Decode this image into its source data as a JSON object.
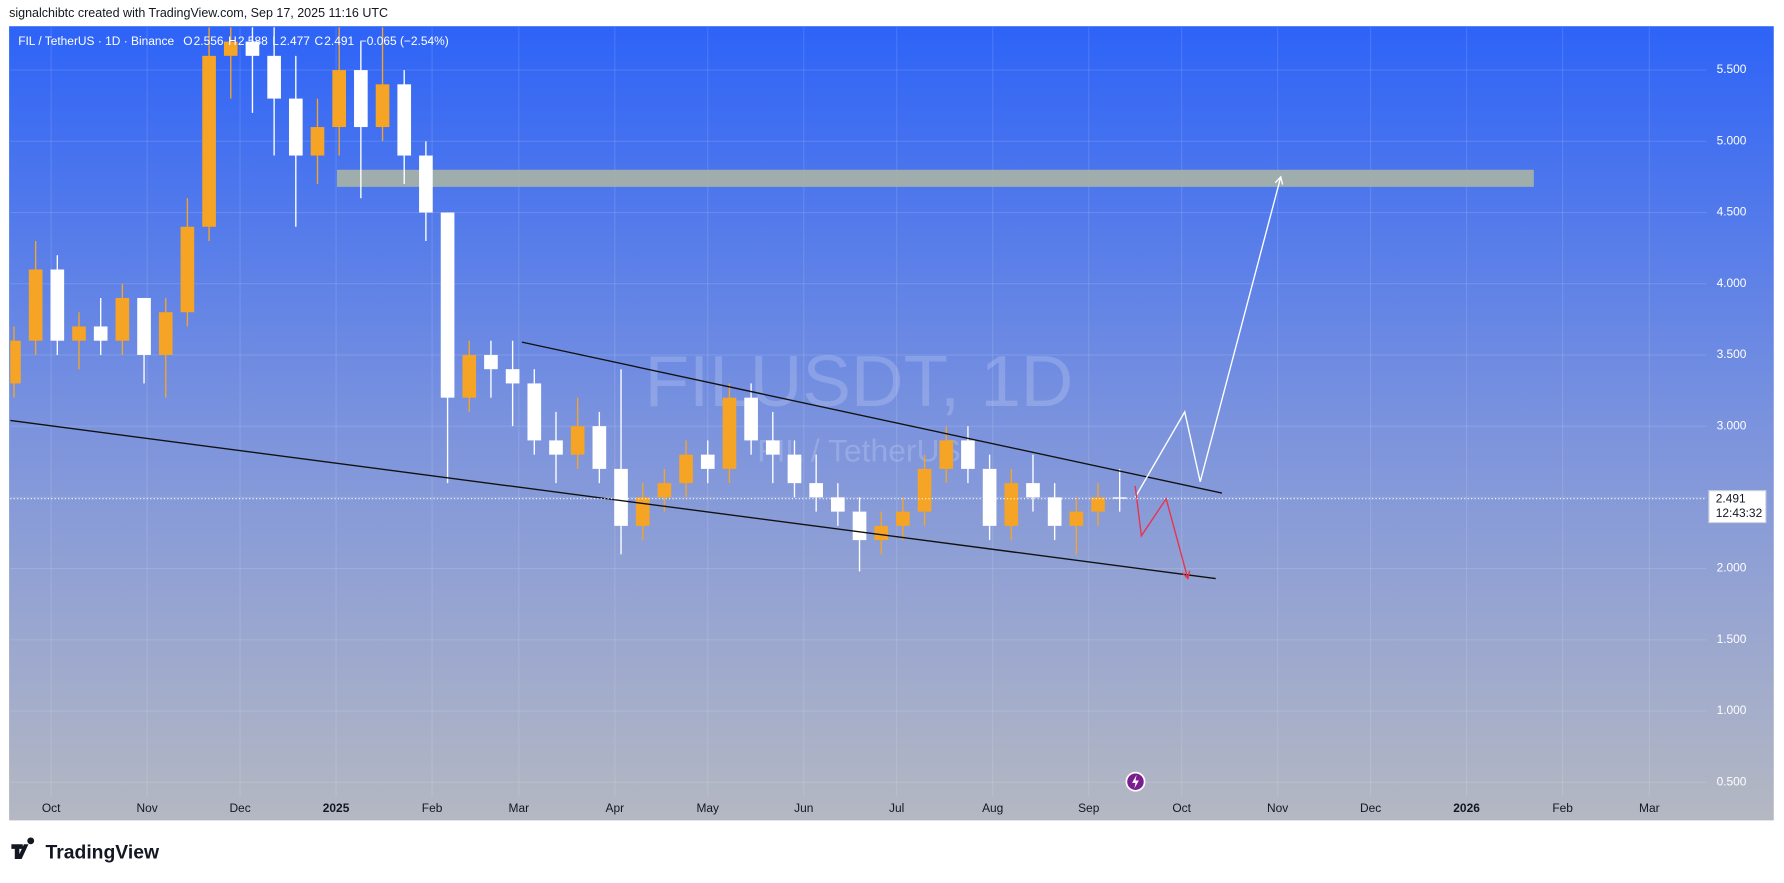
{
  "header": {
    "attribution": "signalchibtc created with TradingView.com, Sep 17, 2025 11:16 UTC"
  },
  "footer": {
    "logo": "TradingView"
  },
  "chart_data": {
    "type": "candlestick",
    "symbol_legend": "FIL / TetherUS · 1D · Binance",
    "ohlc_legend": [
      {
        "label": "O",
        "value": "2.556"
      },
      {
        "label": "H",
        "value": "2.588"
      },
      {
        "label": "L",
        "value": "2.477"
      },
      {
        "label": "C",
        "value": "2.491"
      }
    ],
    "change": "−0.065 (−2.54%)",
    "watermark": "FILUSDT, 1D",
    "watermark_sub": "FIL / TetherUS",
    "up_color": "#f5a425",
    "down_color": "#ffffff",
    "grid": true,
    "x": [
      -12,
      -5,
      2,
      9,
      16,
      23,
      30,
      37,
      44,
      51,
      58,
      65,
      72,
      79,
      86,
      93,
      100,
      107,
      114,
      121,
      128,
      135,
      142,
      149,
      156,
      163,
      170,
      177,
      184,
      191,
      198,
      205,
      212,
      219,
      226,
      233,
      240,
      247,
      254,
      261,
      268,
      275,
      282,
      289,
      296,
      303,
      310,
      317,
      324,
      331,
      338,
      345
    ],
    "ohlc": [
      [
        3.3,
        3.7,
        3.2,
        3.6
      ],
      [
        3.6,
        4.3,
        3.5,
        4.1
      ],
      [
        4.1,
        4.2,
        3.5,
        3.6
      ],
      [
        3.6,
        3.8,
        3.4,
        3.7
      ],
      [
        3.7,
        3.9,
        3.5,
        3.6
      ],
      [
        3.6,
        4.0,
        3.5,
        3.9
      ],
      [
        3.9,
        3.9,
        3.3,
        3.5
      ],
      [
        3.5,
        3.9,
        3.2,
        3.8
      ],
      [
        3.8,
        4.6,
        3.7,
        4.4
      ],
      [
        4.4,
        5.8,
        4.3,
        5.6
      ],
      [
        5.6,
        6.0,
        5.3,
        5.7
      ],
      [
        5.7,
        6.1,
        5.2,
        5.6
      ],
      [
        5.6,
        5.9,
        4.9,
        5.3
      ],
      [
        5.3,
        5.6,
        4.4,
        4.9
      ],
      [
        4.9,
        5.3,
        4.7,
        5.1
      ],
      [
        5.1,
        5.9,
        4.9,
        5.5
      ],
      [
        5.5,
        5.7,
        4.6,
        5.1
      ],
      [
        5.1,
        5.9,
        5.0,
        5.4
      ],
      [
        5.4,
        5.5,
        4.7,
        4.9
      ],
      [
        4.9,
        5.0,
        4.3,
        4.5
      ],
      [
        4.5,
        4.5,
        2.6,
        3.2
      ],
      [
        3.2,
        3.6,
        3.1,
        3.5
      ],
      [
        3.5,
        3.6,
        3.2,
        3.4
      ],
      [
        3.4,
        3.6,
        3.0,
        3.3
      ],
      [
        3.3,
        3.4,
        2.8,
        2.9
      ],
      [
        2.9,
        3.1,
        2.6,
        2.8
      ],
      [
        2.8,
        3.2,
        2.7,
        3.0
      ],
      [
        3.0,
        3.1,
        2.6,
        2.7
      ],
      [
        2.7,
        3.4,
        2.1,
        2.3
      ],
      [
        2.3,
        2.6,
        2.2,
        2.5
      ],
      [
        2.5,
        2.7,
        2.4,
        2.6
      ],
      [
        2.6,
        2.9,
        2.5,
        2.8
      ],
      [
        2.8,
        2.9,
        2.6,
        2.7
      ],
      [
        2.7,
        3.3,
        2.6,
        3.2
      ],
      [
        3.2,
        3.3,
        2.8,
        2.9
      ],
      [
        2.9,
        3.1,
        2.6,
        2.8
      ],
      [
        2.8,
        2.9,
        2.5,
        2.6
      ],
      [
        2.6,
        2.8,
        2.4,
        2.5
      ],
      [
        2.5,
        2.6,
        2.3,
        2.4
      ],
      [
        2.4,
        2.5,
        1.98,
        2.2
      ],
      [
        2.2,
        2.4,
        2.1,
        2.3
      ],
      [
        2.3,
        2.5,
        2.2,
        2.4
      ],
      [
        2.4,
        2.8,
        2.3,
        2.7
      ],
      [
        2.7,
        3.0,
        2.6,
        2.9
      ],
      [
        2.9,
        3.0,
        2.6,
        2.7
      ],
      [
        2.7,
        2.8,
        2.2,
        2.3
      ],
      [
        2.3,
        2.7,
        2.2,
        2.6
      ],
      [
        2.6,
        2.8,
        2.4,
        2.5
      ],
      [
        2.5,
        2.6,
        2.2,
        2.3
      ],
      [
        2.3,
        2.5,
        2.1,
        2.4
      ],
      [
        2.4,
        2.6,
        2.3,
        2.5
      ],
      [
        2.5,
        2.7,
        2.4,
        2.491
      ]
    ],
    "xlim": [
      -13.2,
      534.5
    ],
    "xticks": [
      {
        "value": 0,
        "label": "Oct"
      },
      {
        "value": 31,
        "label": "Nov"
      },
      {
        "value": 61,
        "label": "Dec"
      },
      {
        "value": 92,
        "label": "2025"
      },
      {
        "value": 123,
        "label": "Feb"
      },
      {
        "value": 151,
        "label": "Mar"
      },
      {
        "value": 182,
        "label": "Apr"
      },
      {
        "value": 212,
        "label": "May"
      },
      {
        "value": 243,
        "label": "Jun"
      },
      {
        "value": 273,
        "label": "Jul"
      },
      {
        "value": 304,
        "label": "Aug"
      },
      {
        "value": 335,
        "label": "Sep"
      },
      {
        "value": 365,
        "label": "Oct"
      },
      {
        "value": 396,
        "label": "Nov"
      },
      {
        "value": 426,
        "label": "Dec"
      },
      {
        "value": 457,
        "label": "2026"
      },
      {
        "value": 488,
        "label": "Feb"
      },
      {
        "value": 516,
        "label": "Mar"
      }
    ],
    "ylim": [
      0.4,
      5.8
    ],
    "yticks": [
      {
        "value": 0.5,
        "label": "0.500"
      },
      {
        "value": 1,
        "label": "1.000"
      },
      {
        "value": 1.5,
        "label": "1.500"
      },
      {
        "value": 2,
        "label": "2.000"
      },
      {
        "value": 2.5,
        "label": "2.500"
      },
      {
        "value": 3,
        "label": "3.000"
      },
      {
        "value": 3.5,
        "label": "3.500"
      },
      {
        "value": 4,
        "label": "4.000"
      },
      {
        "value": 4.5,
        "label": "4.500"
      },
      {
        "value": 5,
        "label": "5.000"
      },
      {
        "value": 5.5,
        "label": "5.500"
      }
    ],
    "last_price": {
      "value": 2.491,
      "label": "2.491"
    },
    "countdown": "12:43:32",
    "drawings": [
      {
        "kind": "zone",
        "color": "#a9b4a4",
        "x": [
          92.3,
          478.7
        ],
        "y": [
          4.68,
          4.8
        ]
      },
      {
        "kind": "line",
        "color": "#111111",
        "points": [
          [
            152,
            3.59
          ],
          [
            378,
            2.53
          ]
        ]
      },
      {
        "kind": "line",
        "color": "#111111",
        "points": [
          [
            -13.2,
            3.04
          ],
          [
            376,
            1.93
          ]
        ]
      },
      {
        "kind": "path",
        "color": "#ffffff",
        "points": [
          [
            350,
            2.5
          ],
          [
            366,
            3.1
          ],
          [
            371,
            2.61
          ],
          [
            397,
            4.75
          ]
        ]
      },
      {
        "kind": "path",
        "color": "#e8334a",
        "points": [
          [
            350,
            2.58
          ],
          [
            352,
            2.23
          ],
          [
            360,
            2.49
          ],
          [
            367,
            1.93
          ]
        ]
      }
    ]
  }
}
